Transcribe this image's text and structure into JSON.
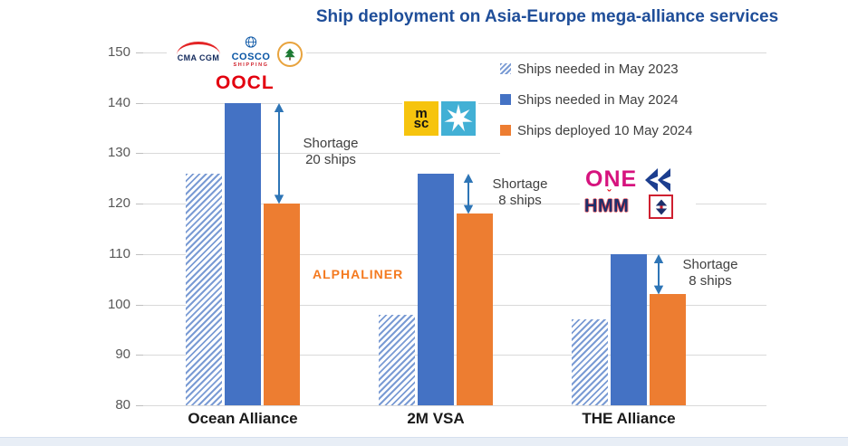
{
  "title": "Ship deployment on Asia-Europe mega-alliance services",
  "watermark": "ALPHALINER",
  "legend": {
    "items": [
      {
        "label": "Ships needed in May 2023",
        "swatch": "hatched-blue"
      },
      {
        "label": "Ships needed in May 2024",
        "swatch": "solid-blue"
      },
      {
        "label": "Ships deployed 10 May 2024",
        "swatch": "solid-orange"
      }
    ]
  },
  "logos": {
    "ocean_alliance": {
      "cma_cgm": "CMA CGM",
      "cosco": "COSCO",
      "cosco_sub": "SHIPPING",
      "evergreen_icon": "evergreen-tree-emblem",
      "oocl": "OOCL"
    },
    "two_m": {
      "msc_top": "m",
      "msc_bottom": "sc",
      "maersk_icon": "maersk-star"
    },
    "the_alliance": {
      "one": "ONE",
      "hapag_icon": "hapag-lloyd-double-pennant",
      "hmm": "HMM",
      "hmm_caron": "ˇ",
      "yang_ming_icon": "yang-ming-flag"
    }
  },
  "colors": {
    "blue": "#4472C4",
    "orange": "#ED7D31",
    "hatch_blue": "#7A9BD4",
    "arrow": "#2E75B6",
    "title": "#1F4E99",
    "grid": "#D9D9D9",
    "axis_text": "#595959",
    "category_text": "#1A1A1A",
    "annotation_text": "#3F3F3F"
  },
  "chart_data": {
    "type": "bar",
    "categories": [
      "Ocean Alliance",
      "2M VSA",
      "THE Alliance"
    ],
    "series": [
      {
        "name": "Ships needed in May 2023",
        "style": "hatched",
        "values": [
          126,
          98,
          97
        ]
      },
      {
        "name": "Ships needed in May 2024",
        "style": "solid-blue",
        "values": [
          140,
          126,
          110
        ]
      },
      {
        "name": "Ships deployed 10 May 2024",
        "style": "solid-orange",
        "values": [
          120,
          118,
          102
        ]
      }
    ],
    "ylim": [
      80,
      150
    ],
    "yticks": [
      80,
      90,
      100,
      110,
      120,
      130,
      140,
      150
    ],
    "grid": true,
    "legend_position": "top-right",
    "annotations": [
      {
        "category": "Ocean Alliance",
        "line1": "Shortage",
        "line2": "20 ships",
        "from": 140,
        "to": 120
      },
      {
        "category": "2M VSA",
        "line1": "Shortage",
        "line2": "8 ships",
        "from": 126,
        "to": 118
      },
      {
        "category": "THE Alliance",
        "line1": "Shortage",
        "line2": "8 ships",
        "from": 110,
        "to": 102
      }
    ]
  }
}
